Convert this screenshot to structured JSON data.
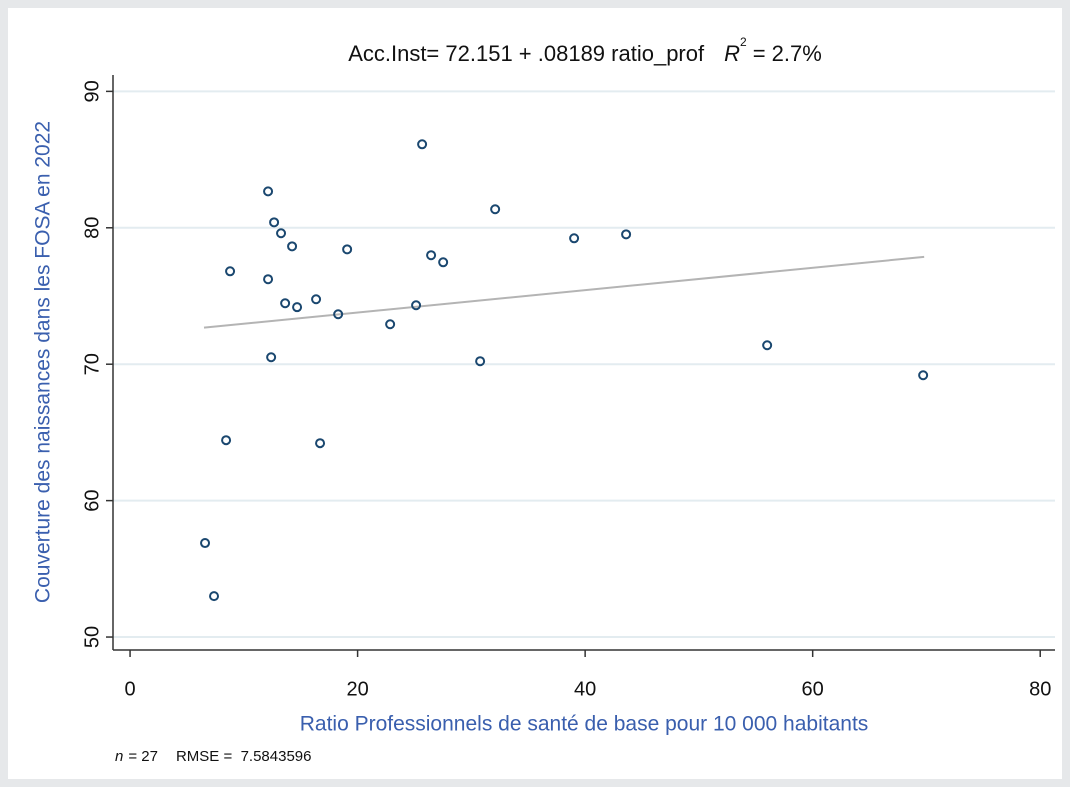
{
  "chart_data": {
    "type": "scatter",
    "title": "Acc.Inst= 72.151 + .08189 ratio_prof",
    "r2_symbol": "R",
    "r2_exponent": "2",
    "r2_text": "= 2.7%",
    "x_label": "Ratio Professionnels de santé de base pour 10 000 habitants",
    "y_label": "Couverture des naissances dans les FOSA en  2022",
    "footnote_n_symbol": "n",
    "footnote_n_text": "= 27",
    "footnote_rmse": "RMSE =  7.5843596",
    "xlim": [
      -1.5,
      81.3
    ],
    "ylim": [
      49.05,
      91.2
    ],
    "xticks": [
      0,
      20,
      40,
      60,
      80
    ],
    "yticks": [
      50,
      60,
      70,
      80,
      90
    ],
    "grid": true,
    "series": [
      {
        "color": "#1a476f",
        "x": [
          6.59,
          7.38,
          8.44,
          8.79,
          12.13,
          12.13,
          12.4,
          12.66,
          13.27,
          13.63,
          14.24,
          14.68,
          16.35,
          16.7,
          18.29,
          19.08,
          22.86,
          25.14,
          25.67,
          26.46,
          27.52,
          30.77,
          32.09,
          39.03,
          43.6,
          56.0,
          69.71
        ],
        "values": [
          56.89,
          53.0,
          64.43,
          76.81,
          82.67,
          76.23,
          70.51,
          80.4,
          79.6,
          74.47,
          78.64,
          74.18,
          74.76,
          64.21,
          73.66,
          78.42,
          72.93,
          74.32,
          86.12,
          77.99,
          77.47,
          70.22,
          81.36,
          79.23,
          79.52,
          71.39,
          69.19
        ]
      },
      {
        "type": "line",
        "color": "#b4b4b4",
        "x": [
          6.5,
          69.8
        ],
        "values": [
          72.68,
          77.87
        ]
      }
    ]
  }
}
